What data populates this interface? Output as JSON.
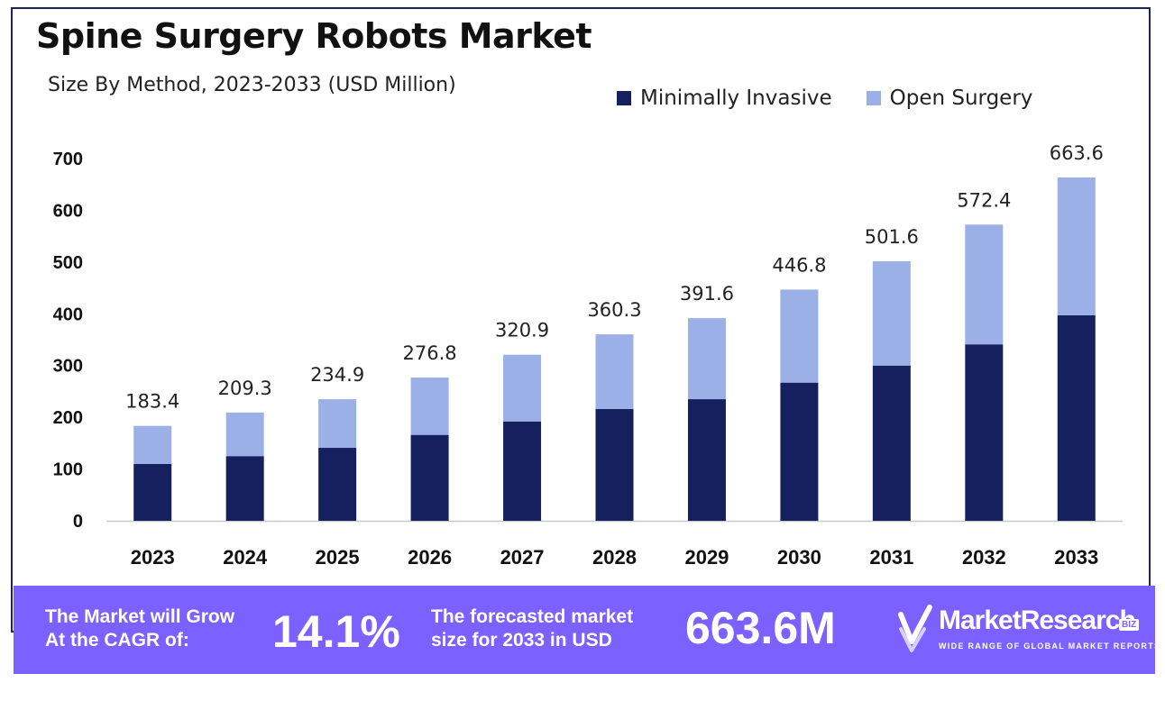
{
  "header": {
    "title": "Spine Surgery Robots Market",
    "subtitle": "Size By Method, 2023-2033 (USD Million)"
  },
  "legend": {
    "minimally_invasive": "Minimally Invasive",
    "open_surgery": "Open Surgery"
  },
  "colors": {
    "minimally_invasive": "#16205e",
    "open_surgery": "#9bb0e6",
    "banner": "#7b61ff"
  },
  "chart_data": {
    "type": "bar",
    "stacked": true,
    "title": "Spine Surgery Robots Market",
    "subtitle": "Size By Method, 2023-2033 (USD Million)",
    "xlabel": "",
    "ylabel": "",
    "ylim": [
      0,
      700
    ],
    "yticks": [
      0,
      100,
      200,
      300,
      400,
      500,
      600,
      700
    ],
    "categories": [
      "2023",
      "2024",
      "2025",
      "2026",
      "2027",
      "2028",
      "2029",
      "2030",
      "2031",
      "2032",
      "2033"
    ],
    "series": [
      {
        "name": "Minimally Invasive",
        "values": [
          110,
          125,
          141,
          166,
          192,
          216,
          235,
          267,
          300,
          341,
          397
        ]
      },
      {
        "name": "Open Surgery",
        "values": [
          73.4,
          84.3,
          93.9,
          110.8,
          128.9,
          144.3,
          156.6,
          179.8,
          201.6,
          231.4,
          266.6
        ]
      }
    ],
    "totals": [
      "183.4",
      "209.3",
      "234.9",
      "276.8",
      "320.9",
      "360.3",
      "391.6",
      "446.8",
      "501.6",
      "572.4",
      "663.6"
    ],
    "legend_position": "top-right",
    "grid": false
  },
  "banner": {
    "cagr_text_line1": "The Market will Grow",
    "cagr_text_line2": "At the CAGR of:",
    "cagr_value": "14.1%",
    "forecast_text_line1": "The forecasted market",
    "forecast_text_line2": "size for 2033 in USD",
    "forecast_value": "663.6M"
  },
  "logo": {
    "name": "MarketResearch",
    "badge": "BIZ",
    "tagline": "WIDE RANGE OF GLOBAL MARKET REPORTS"
  }
}
